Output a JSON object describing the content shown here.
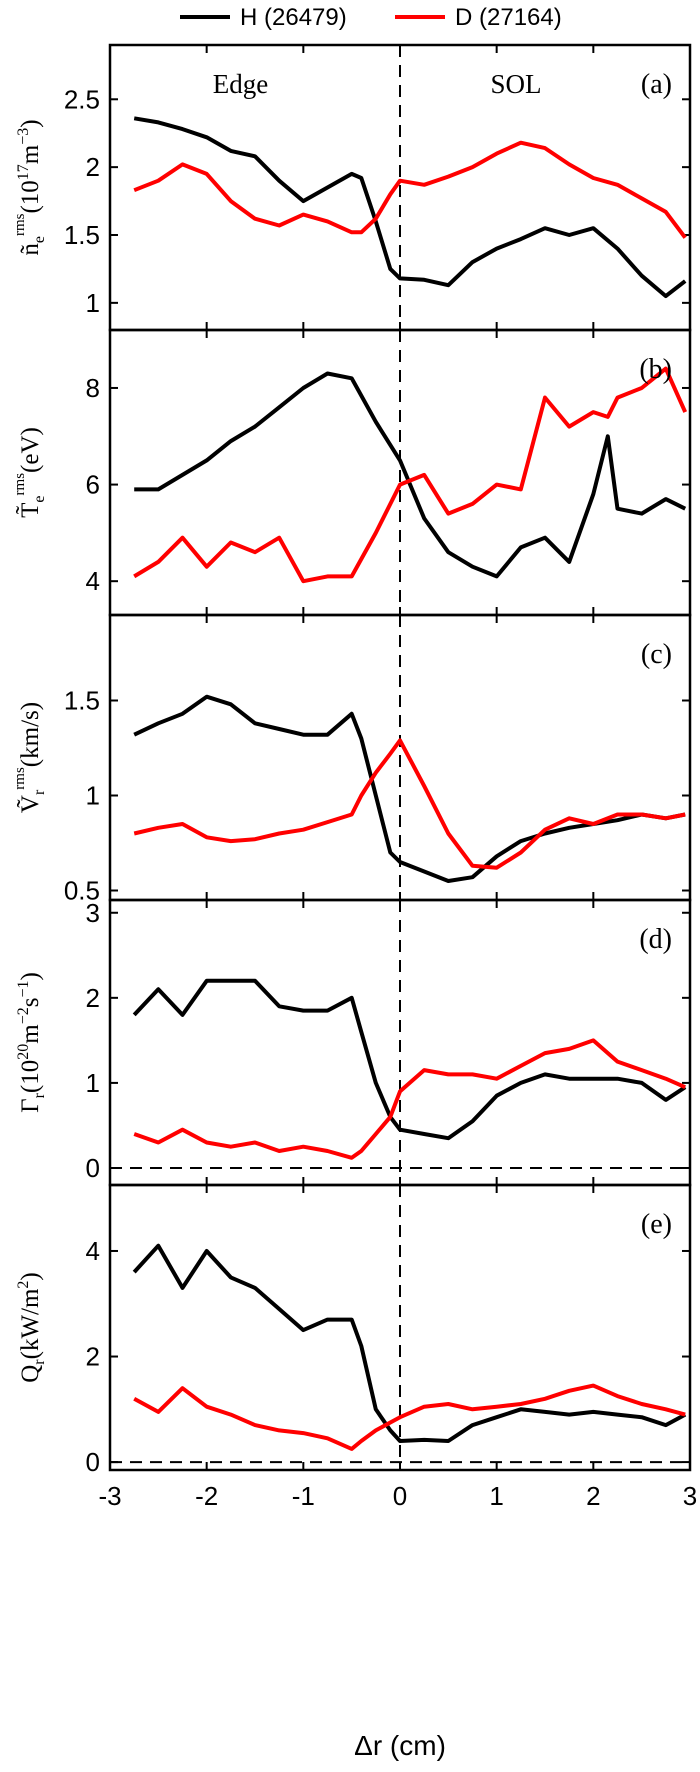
{
  "legend": {
    "items": [
      {
        "label": "H (26479)",
        "color": "#000000"
      },
      {
        "label": "D (27164)",
        "color": "#ff0000"
      }
    ]
  },
  "x_axis": {
    "label": "Δr (cm)",
    "range": [
      -3,
      3
    ],
    "ticks": [
      -3,
      -2,
      -1,
      0,
      1,
      2,
      3
    ],
    "tick_labels": [
      "-3",
      "-2",
      "-1",
      "0",
      "1",
      "2",
      "3"
    ]
  },
  "regions": {
    "left": "Edge",
    "right": "SOL"
  },
  "colors": {
    "H": "#000000",
    "D": "#ff0000"
  },
  "chart_data": [
    {
      "type": "line",
      "panel_label": "(a)",
      "ylabel": "ñe rms (10^17 m^-3)",
      "ylim": [
        0.8,
        2.9
      ],
      "yticks": [
        1,
        1.5,
        2,
        2.5
      ],
      "ytick_labels": [
        "1",
        "1.5",
        "2",
        "2.5"
      ],
      "x": [
        -2.75,
        -2.5,
        -2.25,
        -2.0,
        -1.75,
        -1.5,
        -1.25,
        -1.0,
        -0.75,
        -0.5,
        -0.4,
        -0.25,
        -0.1,
        0.0,
        0.25,
        0.5,
        0.75,
        1.0,
        1.25,
        1.5,
        1.75,
        2.0,
        2.25,
        2.5,
        2.75,
        2.95
      ],
      "series": [
        {
          "name": "H (26479)",
          "values": [
            2.36,
            2.33,
            2.28,
            2.22,
            2.12,
            2.08,
            1.9,
            1.75,
            1.85,
            1.95,
            1.92,
            1.6,
            1.25,
            1.18,
            1.17,
            1.13,
            1.3,
            1.4,
            1.47,
            1.55,
            1.5,
            1.55,
            1.4,
            1.2,
            1.05,
            1.16
          ]
        },
        {
          "name": "D (27164)",
          "values": [
            1.83,
            1.9,
            2.02,
            1.95,
            1.75,
            1.62,
            1.57,
            1.65,
            1.6,
            1.52,
            1.52,
            1.62,
            1.8,
            1.9,
            1.87,
            1.93,
            2.0,
            2.1,
            2.18,
            2.14,
            2.02,
            1.92,
            1.87,
            1.77,
            1.67,
            1.48
          ]
        }
      ]
    },
    {
      "type": "line",
      "panel_label": "(b)",
      "ylabel": "T̃e rms (eV)",
      "ylim": [
        3.3,
        9.2
      ],
      "yticks": [
        4,
        6,
        8
      ],
      "ytick_labels": [
        "4",
        "6",
        "8"
      ],
      "x": [
        -2.75,
        -2.5,
        -2.25,
        -2.0,
        -1.75,
        -1.5,
        -1.25,
        -1.0,
        -0.75,
        -0.5,
        -0.25,
        0.0,
        0.25,
        0.5,
        0.75,
        1.0,
        1.25,
        1.5,
        1.75,
        2.0,
        2.15,
        2.25,
        2.5,
        2.75,
        2.95
      ],
      "series": [
        {
          "name": "H (26479)",
          "values": [
            5.9,
            5.9,
            6.2,
            6.5,
            6.9,
            7.2,
            7.6,
            8.0,
            8.3,
            8.2,
            7.3,
            6.5,
            5.3,
            4.6,
            4.3,
            4.1,
            4.7,
            4.9,
            4.4,
            5.8,
            7.0,
            5.5,
            5.4,
            5.7,
            5.5
          ]
        },
        {
          "name": "D (27164)",
          "values": [
            4.1,
            4.4,
            4.9,
            4.3,
            4.8,
            4.6,
            4.9,
            4.0,
            4.1,
            4.1,
            5.0,
            6.0,
            6.2,
            5.4,
            5.6,
            6.0,
            5.9,
            7.8,
            7.2,
            7.5,
            7.4,
            7.8,
            8.0,
            8.4,
            7.5
          ]
        }
      ]
    },
    {
      "type": "line",
      "panel_label": "(c)",
      "ylabel": "Ṽr rms (km/s)",
      "ylim": [
        0.45,
        1.95
      ],
      "yticks": [
        0.5,
        1,
        1.5
      ],
      "ytick_labels": [
        "0.5",
        "1",
        "1.5"
      ],
      "x": [
        -2.75,
        -2.5,
        -2.25,
        -2.0,
        -1.75,
        -1.5,
        -1.25,
        -1.0,
        -0.75,
        -0.5,
        -0.4,
        -0.25,
        -0.1,
        0.0,
        0.25,
        0.5,
        0.75,
        1.0,
        1.25,
        1.5,
        1.75,
        2.0,
        2.25,
        2.5,
        2.75,
        2.95
      ],
      "series": [
        {
          "name": "H (26479)",
          "values": [
            1.32,
            1.38,
            1.43,
            1.52,
            1.48,
            1.38,
            1.35,
            1.32,
            1.32,
            1.43,
            1.3,
            1.0,
            0.7,
            0.65,
            0.6,
            0.55,
            0.57,
            0.68,
            0.76,
            0.8,
            0.83,
            0.85,
            0.87,
            0.9,
            0.88,
            0.9
          ]
        },
        {
          "name": "D (27164)",
          "values": [
            0.8,
            0.83,
            0.85,
            0.78,
            0.76,
            0.77,
            0.8,
            0.82,
            0.86,
            0.9,
            1.0,
            1.12,
            1.22,
            1.29,
            1.05,
            0.8,
            0.63,
            0.62,
            0.7,
            0.82,
            0.88,
            0.85,
            0.9,
            0.9,
            0.88,
            0.9
          ]
        }
      ]
    },
    {
      "type": "line",
      "panel_label": "(d)",
      "ylabel": "Γr (10^20 m^-2 s^-1)",
      "ylim": [
        -0.2,
        3.15
      ],
      "yticks": [
        0,
        1,
        2,
        3
      ],
      "ytick_labels": [
        "0",
        "1",
        "2",
        "3"
      ],
      "x": [
        -2.75,
        -2.5,
        -2.25,
        -2.0,
        -1.75,
        -1.5,
        -1.25,
        -1.0,
        -0.75,
        -0.5,
        -0.4,
        -0.25,
        -0.1,
        0.0,
        0.25,
        0.5,
        0.75,
        1.0,
        1.25,
        1.5,
        1.75,
        2.0,
        2.25,
        2.5,
        2.75,
        2.95
      ],
      "series": [
        {
          "name": "H (26479)",
          "values": [
            1.8,
            2.1,
            1.8,
            2.2,
            2.2,
            2.2,
            1.9,
            1.85,
            1.85,
            2.0,
            1.6,
            1.0,
            0.6,
            0.45,
            0.4,
            0.35,
            0.55,
            0.85,
            1.0,
            1.1,
            1.05,
            1.05,
            1.05,
            1.0,
            0.8,
            0.95
          ]
        },
        {
          "name": "D (27164)",
          "values": [
            0.4,
            0.3,
            0.45,
            0.3,
            0.25,
            0.3,
            0.2,
            0.25,
            0.2,
            0.12,
            0.2,
            0.4,
            0.6,
            0.9,
            1.15,
            1.1,
            1.1,
            1.05,
            1.2,
            1.35,
            1.4,
            1.5,
            1.25,
            1.15,
            1.05,
            0.95
          ]
        }
      ]
    },
    {
      "type": "line",
      "panel_label": "(e)",
      "ylabel": "Qr (kW/m^2)",
      "ylim": [
        -0.15,
        5.25
      ],
      "yticks": [
        0,
        2,
        4
      ],
      "ytick_labels": [
        "0",
        "2",
        "4"
      ],
      "x": [
        -2.75,
        -2.5,
        -2.25,
        -2.0,
        -1.75,
        -1.5,
        -1.25,
        -1.0,
        -0.75,
        -0.5,
        -0.4,
        -0.25,
        -0.1,
        0.0,
        0.25,
        0.5,
        0.75,
        1.0,
        1.25,
        1.5,
        1.75,
        2.0,
        2.25,
        2.5,
        2.75,
        2.95
      ],
      "series": [
        {
          "name": "H (26479)",
          "values": [
            3.6,
            4.1,
            3.3,
            4.0,
            3.5,
            3.3,
            2.9,
            2.5,
            2.7,
            2.7,
            2.2,
            1.0,
            0.6,
            0.4,
            0.42,
            0.4,
            0.7,
            0.85,
            1.0,
            0.95,
            0.9,
            0.95,
            0.9,
            0.85,
            0.7,
            0.9
          ]
        },
        {
          "name": "D (27164)",
          "values": [
            1.2,
            0.95,
            1.4,
            1.05,
            0.9,
            0.7,
            0.6,
            0.55,
            0.45,
            0.25,
            0.4,
            0.6,
            0.75,
            0.85,
            1.05,
            1.1,
            1.0,
            1.05,
            1.1,
            1.2,
            1.35,
            1.45,
            1.25,
            1.1,
            1.0,
            0.9
          ]
        }
      ]
    }
  ]
}
